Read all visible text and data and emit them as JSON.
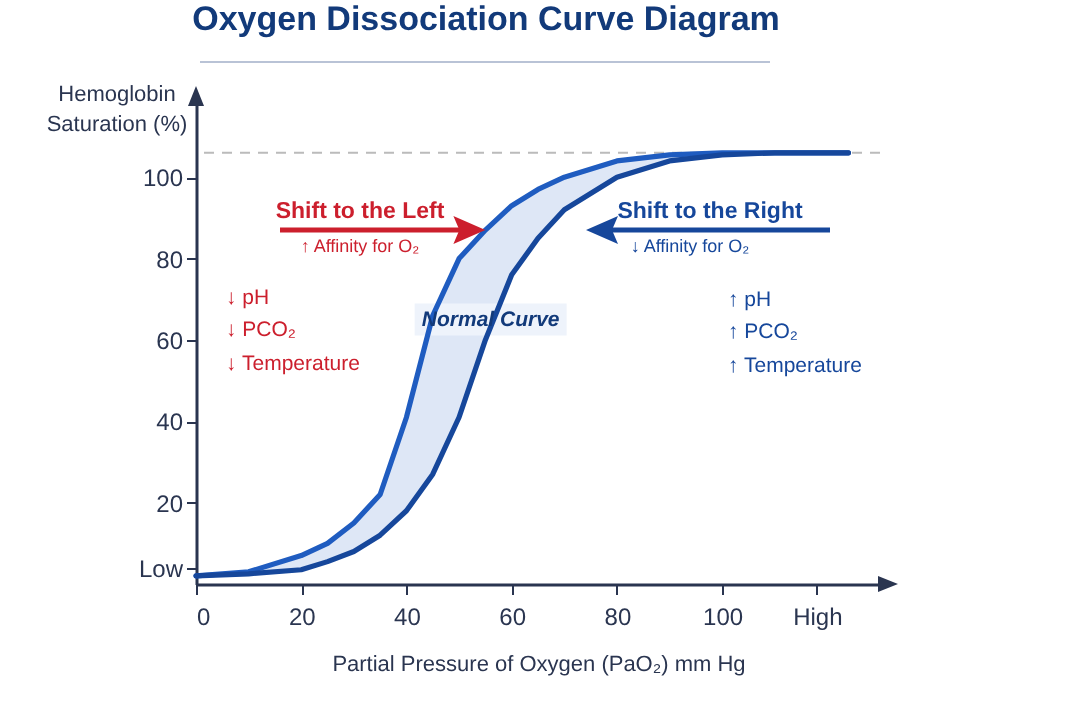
{
  "chart_data": {
    "type": "line",
    "title": "Oxygen Dissociation Curve Diagram",
    "xlabel": "Partial Pressure of Oxygen (PaO₂) mm Hg",
    "ylabel": "Hemoglobin Saturation (%)",
    "x": [
      0,
      10,
      20,
      25,
      30,
      35,
      40,
      45,
      50,
      55,
      60,
      65,
      70,
      80,
      90,
      100,
      110,
      124
    ],
    "series": [
      {
        "color": "#1f5cc0",
        "values": [
          2,
          3,
          7,
          10,
          15,
          22,
          41,
          66,
          80,
          87,
          93,
          97,
          100,
          104,
          105.5,
          106,
          106,
          106
        ]
      },
      {
        "color": "#16479b",
        "values": [
          2,
          2.5,
          3.5,
          5.5,
          8,
          12,
          18,
          27,
          41,
          60,
          76,
          85,
          92,
          100,
          104,
          105.5,
          106,
          106
        ]
      }
    ],
    "xlim": [
      0,
      130
    ],
    "xticks": [
      0,
      20,
      40,
      60,
      80,
      100,
      {
        "value": 118,
        "label": "High"
      }
    ],
    "ylim": [
      0,
      118
    ],
    "yticks": [
      {
        "value": 4,
        "label": "Low"
      },
      20,
      40,
      60,
      80,
      100
    ],
    "ref_lines": [
      {
        "axis": "y",
        "value": 106,
        "color": "#bbbbbb",
        "line_style": "dashed"
      }
    ],
    "annotations": [
      {
        "text": "Shift to the Left",
        "x": 55,
        "y": 87
      },
      "↑ Affinity for O₂",
      "Shift to the Right",
      "↓ Affinity for O₂",
      "↓ pH",
      "↓ PCO₂",
      "↓ Temperature",
      "↑ pH",
      "↑ PCO₂",
      "↑ Temperature",
      {
        "text": "Normal Curve",
        "x": 56,
        "y": 65
      }
    ],
    "grid": false,
    "legend": false,
    "marker": "none",
    "line_style": "solid"
  }
}
